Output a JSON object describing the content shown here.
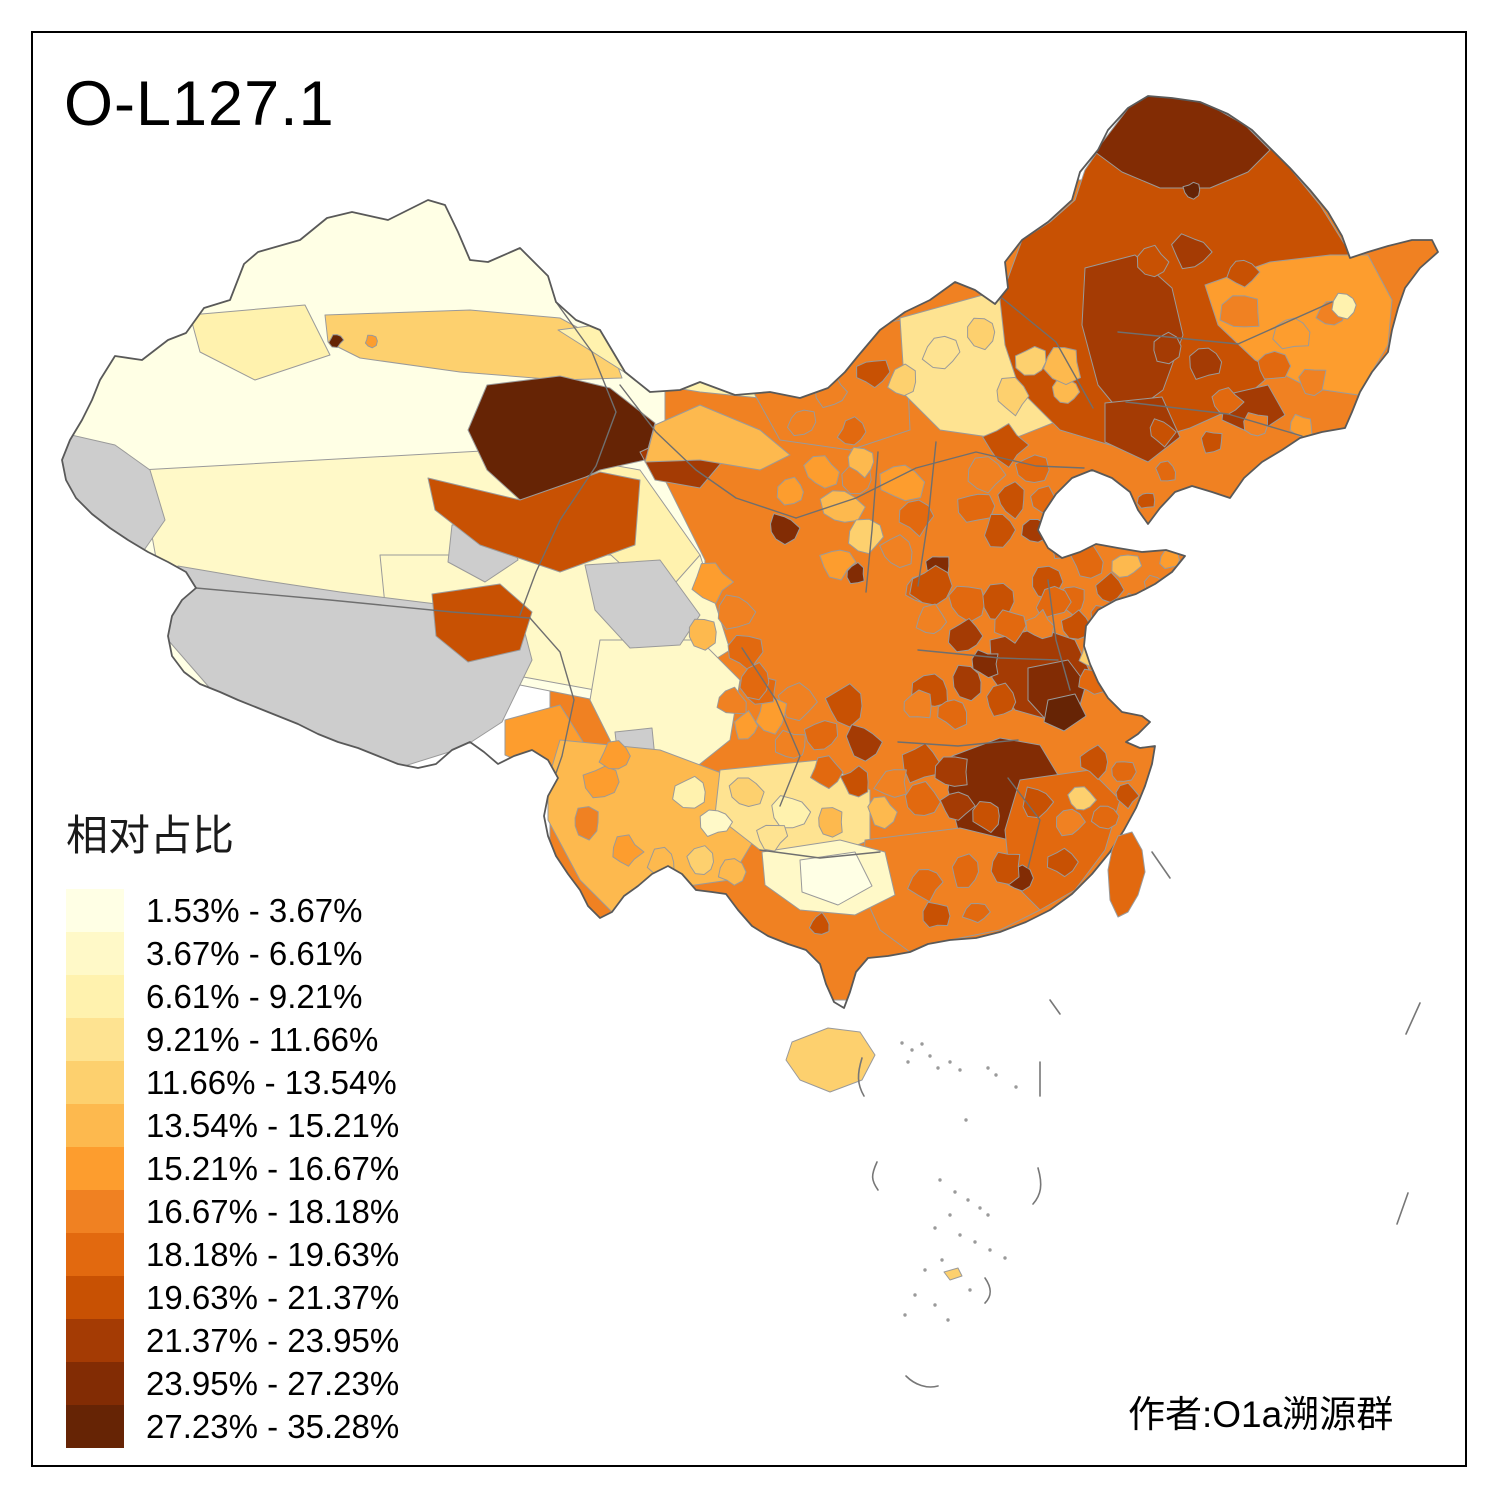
{
  "title": "O-L127.1",
  "legend": {
    "title": "相对占比",
    "items": [
      {
        "range": "1.53% - 3.67%",
        "color": "#FFFFE5"
      },
      {
        "range": "3.67% - 6.61%",
        "color": "#FFF9C8"
      },
      {
        "range": "6.61% - 9.21%",
        "color": "#FFF2AE"
      },
      {
        "range": "9.21% - 11.66%",
        "color": "#FEE391"
      },
      {
        "range": "11.66% - 13.54%",
        "color": "#FDD06E"
      },
      {
        "range": "13.54% - 15.21%",
        "color": "#FDB94E"
      },
      {
        "range": "15.21% - 16.67%",
        "color": "#FD9D2E"
      },
      {
        "range": "16.67% - 18.18%",
        "color": "#F08122"
      },
      {
        "range": "18.18% - 19.63%",
        "color": "#E2690F"
      },
      {
        "range": "19.63% - 21.37%",
        "color": "#C85103"
      },
      {
        "range": "21.37% - 23.95%",
        "color": "#A43B04"
      },
      {
        "range": "23.95% - 27.23%",
        "color": "#822C04"
      },
      {
        "range": "27.23% - 35.28%",
        "color": "#662405"
      }
    ]
  },
  "credit": "作者:O1a溯源群",
  "map": {
    "no_data_color": "#CDCDCD",
    "prefecture_border_color": "#9A9A9A",
    "province_border_color": "#6F6F6F",
    "national_border_color": "#595959",
    "sea_color": "#FFFFFF"
  }
}
